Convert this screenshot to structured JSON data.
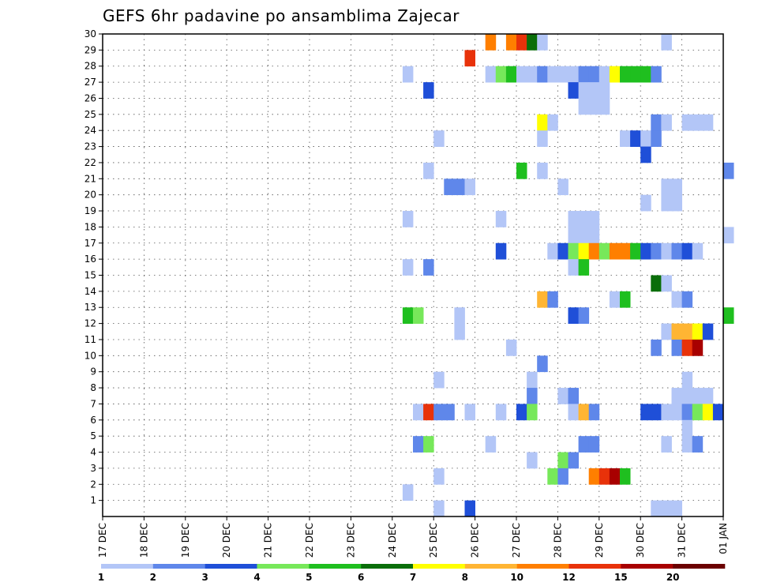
{
  "chart_data": {
    "type": "heatmap",
    "title": "GEFS 6hr padavine po ansamblima Zajecar",
    "xlabel": "",
    "ylabel": "",
    "x_ticks": [
      "17 DEC",
      "18 DEC",
      "19 DEC",
      "20 DEC",
      "21 DEC",
      "22 DEC",
      "23 DEC",
      "24 DEC",
      "25 DEC",
      "26 DEC",
      "27 DEC",
      "28 DEC",
      "29 DEC",
      "30 DEC",
      "31 DEC",
      "01 JAN"
    ],
    "x_unit": "6-hour step",
    "x_range": [
      "17 DEC 00Z",
      "01 JAN 00Z"
    ],
    "y_ticks": [
      1,
      2,
      3,
      4,
      5,
      6,
      7,
      8,
      9,
      10,
      11,
      12,
      13,
      14,
      15,
      16,
      17,
      18,
      19,
      20,
      21,
      22,
      23,
      24,
      25,
      26,
      27,
      28,
      29,
      30
    ],
    "y_range": [
      0,
      30
    ],
    "grid": true,
    "colorbar": {
      "placement": "bottom",
      "labels": [
        "1",
        "2",
        "3",
        "4",
        "5",
        "6",
        "7",
        "8",
        "10",
        "12",
        "15",
        "20"
      ],
      "colors": [
        "#b3c6f7",
        "#5f87ea",
        "#1f4fd8",
        "#77e85a",
        "#1fbf1f",
        "#0a6e0a",
        "#ffff00",
        "#ffb533",
        "#ff7f00",
        "#e8320a",
        "#a80000",
        "#6b0000"
      ]
    },
    "cells": [
      {
        "m": 30,
        "x": "26 DEC 06Z",
        "c": 8
      },
      {
        "m": 30,
        "x": "26 DEC 18Z",
        "c": 8
      },
      {
        "m": 30,
        "x": "27 DEC 00Z",
        "c": 9
      },
      {
        "m": 30,
        "x": "27 DEC 06Z",
        "c": 5
      },
      {
        "m": 30,
        "x": "27 DEC 12Z",
        "c": 0
      },
      {
        "m": 30,
        "x": "30 DEC 12Z",
        "c": 0
      },
      {
        "m": 29,
        "x": "25 DEC 18Z",
        "c": 9
      },
      {
        "m": 28,
        "x": "24 DEC 06Z",
        "c": 0
      },
      {
        "m": 28,
        "x": "26 DEC 06Z",
        "c": 0
      },
      {
        "m": 28,
        "x": "26 DEC 12Z",
        "c": 3
      },
      {
        "m": 28,
        "x": "26 DEC 18Z",
        "c": 4
      },
      {
        "m": 28,
        "x": "27 DEC 00Z",
        "c": 0
      },
      {
        "m": 28,
        "x": "27 DEC 06Z",
        "c": 0
      },
      {
        "m": 28,
        "x": "27 DEC 12Z",
        "c": 1
      },
      {
        "m": 28,
        "x": "27 DEC 18Z",
        "c": 0
      },
      {
        "m": 28,
        "x": "28 DEC 00Z",
        "c": 0
      },
      {
        "m": 28,
        "x": "28 DEC 06Z",
        "c": 0
      },
      {
        "m": 28,
        "x": "28 DEC 12Z",
        "c": 1
      },
      {
        "m": 28,
        "x": "28 DEC 18Z",
        "c": 1
      },
      {
        "m": 28,
        "x": "29 DEC 00Z",
        "c": 0
      },
      {
        "m": 28,
        "x": "29 DEC 06Z",
        "c": 6
      },
      {
        "m": 28,
        "x": "29 DEC 12Z",
        "c": 4
      },
      {
        "m": 28,
        "x": "29 DEC 18Z",
        "c": 4
      },
      {
        "m": 28,
        "x": "30 DEC 00Z",
        "c": 4
      },
      {
        "m": 28,
        "x": "30 DEC 06Z",
        "c": 1
      },
      {
        "m": 27,
        "x": "24 DEC 18Z",
        "c": 2
      },
      {
        "m": 27,
        "x": "28 DEC 06Z",
        "c": 2
      },
      {
        "m": 27,
        "x": "28 DEC 12Z",
        "c": 0
      },
      {
        "m": 27,
        "x": "28 DEC 18Z",
        "c": 0
      },
      {
        "m": 27,
        "x": "29 DEC 00Z",
        "c": 0
      },
      {
        "m": 26,
        "x": "28 DEC 12Z",
        "c": 0
      },
      {
        "m": 26,
        "x": "28 DEC 18Z",
        "c": 0
      },
      {
        "m": 26,
        "x": "29 DEC 00Z",
        "c": 0
      },
      {
        "m": 25,
        "x": "27 DEC 12Z",
        "c": 6
      },
      {
        "m": 25,
        "x": "27 DEC 18Z",
        "c": 0
      },
      {
        "m": 25,
        "x": "30 DEC 06Z",
        "c": 1
      },
      {
        "m": 25,
        "x": "30 DEC 12Z",
        "c": 0
      },
      {
        "m": 25,
        "x": "31 DEC 00Z",
        "c": 0
      },
      {
        "m": 25,
        "x": "31 DEC 06Z",
        "c": 0
      },
      {
        "m": 25,
        "x": "31 DEC 12Z",
        "c": 0
      },
      {
        "m": 24,
        "x": "25 DEC 00Z",
        "c": 0
      },
      {
        "m": 24,
        "x": "27 DEC 12Z",
        "c": 0
      },
      {
        "m": 24,
        "x": "29 DEC 12Z",
        "c": 0
      },
      {
        "m": 24,
        "x": "29 DEC 18Z",
        "c": 2
      },
      {
        "m": 24,
        "x": "30 DEC 00Z",
        "c": 0
      },
      {
        "m": 24,
        "x": "30 DEC 06Z",
        "c": 1
      },
      {
        "m": 23,
        "x": "30 DEC 00Z",
        "c": 2
      },
      {
        "m": 22,
        "x": "24 DEC 18Z",
        "c": 0
      },
      {
        "m": 22,
        "x": "27 DEC 00Z",
        "c": 4
      },
      {
        "m": 22,
        "x": "27 DEC 12Z",
        "c": 0
      },
      {
        "m": 22,
        "x": "01 JAN 00Z",
        "c": 1
      },
      {
        "m": 21,
        "x": "25 DEC 06Z",
        "c": 1
      },
      {
        "m": 21,
        "x": "25 DEC 12Z",
        "c": 1
      },
      {
        "m": 21,
        "x": "25 DEC 18Z",
        "c": 0
      },
      {
        "m": 21,
        "x": "28 DEC 00Z",
        "c": 0
      },
      {
        "m": 21,
        "x": "30 DEC 12Z",
        "c": 0
      },
      {
        "m": 21,
        "x": "30 DEC 18Z",
        "c": 0
      },
      {
        "m": 20,
        "x": "30 DEC 00Z",
        "c": 0
      },
      {
        "m": 20,
        "x": "30 DEC 12Z",
        "c": 0
      },
      {
        "m": 20,
        "x": "30 DEC 18Z",
        "c": 0
      },
      {
        "m": 19,
        "x": "24 DEC 06Z",
        "c": 0
      },
      {
        "m": 19,
        "x": "26 DEC 12Z",
        "c": 0
      },
      {
        "m": 19,
        "x": "28 DEC 06Z",
        "c": 0
      },
      {
        "m": 19,
        "x": "28 DEC 12Z",
        "c": 0
      },
      {
        "m": 19,
        "x": "28 DEC 18Z",
        "c": 0
      },
      {
        "m": 18,
        "x": "28 DEC 06Z",
        "c": 0
      },
      {
        "m": 18,
        "x": "28 DEC 12Z",
        "c": 0
      },
      {
        "m": 18,
        "x": "28 DEC 18Z",
        "c": 0
      },
      {
        "m": 18,
        "x": "01 JAN 00Z",
        "c": 0
      },
      {
        "m": 17,
        "x": "26 DEC 12Z",
        "c": 2
      },
      {
        "m": 17,
        "x": "27 DEC 18Z",
        "c": 0
      },
      {
        "m": 17,
        "x": "28 DEC 00Z",
        "c": 2
      },
      {
        "m": 17,
        "x": "28 DEC 06Z",
        "c": 3
      },
      {
        "m": 17,
        "x": "28 DEC 12Z",
        "c": 6
      },
      {
        "m": 17,
        "x": "28 DEC 18Z",
        "c": 8
      },
      {
        "m": 17,
        "x": "29 DEC 00Z",
        "c": 3
      },
      {
        "m": 17,
        "x": "29 DEC 06Z",
        "c": 8
      },
      {
        "m": 17,
        "x": "29 DEC 12Z",
        "c": 8
      },
      {
        "m": 17,
        "x": "29 DEC 18Z",
        "c": 4
      },
      {
        "m": 17,
        "x": "30 DEC 00Z",
        "c": 2
      },
      {
        "m": 17,
        "x": "30 DEC 06Z",
        "c": 1
      },
      {
        "m": 17,
        "x": "30 DEC 12Z",
        "c": 0
      },
      {
        "m": 17,
        "x": "30 DEC 18Z",
        "c": 1
      },
      {
        "m": 17,
        "x": "31 DEC 00Z",
        "c": 2
      },
      {
        "m": 17,
        "x": "31 DEC 06Z",
        "c": 0
      },
      {
        "m": 16,
        "x": "24 DEC 06Z",
        "c": 0
      },
      {
        "m": 16,
        "x": "24 DEC 18Z",
        "c": 1
      },
      {
        "m": 16,
        "x": "28 DEC 06Z",
        "c": 0
      },
      {
        "m": 16,
        "x": "28 DEC 12Z",
        "c": 4
      },
      {
        "m": 15,
        "x": "30 DEC 06Z",
        "c": 5
      },
      {
        "m": 15,
        "x": "30 DEC 12Z",
        "c": 0
      },
      {
        "m": 14,
        "x": "27 DEC 12Z",
        "c": 7
      },
      {
        "m": 14,
        "x": "27 DEC 18Z",
        "c": 1
      },
      {
        "m": 14,
        "x": "29 DEC 06Z",
        "c": 0
      },
      {
        "m": 14,
        "x": "29 DEC 12Z",
        "c": 4
      },
      {
        "m": 14,
        "x": "30 DEC 18Z",
        "c": 0
      },
      {
        "m": 14,
        "x": "31 DEC 00Z",
        "c": 1
      },
      {
        "m": 13,
        "x": "24 DEC 06Z",
        "c": 4
      },
      {
        "m": 13,
        "x": "24 DEC 12Z",
        "c": 3
      },
      {
        "m": 13,
        "x": "25 DEC 12Z",
        "c": 0
      },
      {
        "m": 13,
        "x": "28 DEC 06Z",
        "c": 2
      },
      {
        "m": 13,
        "x": "28 DEC 12Z",
        "c": 1
      },
      {
        "m": 13,
        "x": "01 JAN 00Z",
        "c": 4
      },
      {
        "m": 12,
        "x": "25 DEC 12Z",
        "c": 0
      },
      {
        "m": 12,
        "x": "30 DEC 12Z",
        "c": 0
      },
      {
        "m": 12,
        "x": "30 DEC 18Z",
        "c": 7
      },
      {
        "m": 12,
        "x": "31 DEC 00Z",
        "c": 7
      },
      {
        "m": 12,
        "x": "31 DEC 06Z",
        "c": 6
      },
      {
        "m": 12,
        "x": "31 DEC 12Z",
        "c": 2
      },
      {
        "m": 11,
        "x": "26 DEC 18Z",
        "c": 0
      },
      {
        "m": 11,
        "x": "30 DEC 06Z",
        "c": 1
      },
      {
        "m": 11,
        "x": "30 DEC 18Z",
        "c": 1
      },
      {
        "m": 11,
        "x": "31 DEC 00Z",
        "c": 9
      },
      {
        "m": 11,
        "x": "31 DEC 06Z",
        "c": 10
      },
      {
        "m": 10,
        "x": "27 DEC 12Z",
        "c": 1
      },
      {
        "m": 9,
        "x": "25 DEC 00Z",
        "c": 0
      },
      {
        "m": 9,
        "x": "27 DEC 06Z",
        "c": 0
      },
      {
        "m": 9,
        "x": "31 DEC 00Z",
        "c": 0
      },
      {
        "m": 8,
        "x": "27 DEC 06Z",
        "c": 1
      },
      {
        "m": 8,
        "x": "28 DEC 00Z",
        "c": 0
      },
      {
        "m": 8,
        "x": "28 DEC 06Z",
        "c": 1
      },
      {
        "m": 8,
        "x": "30 DEC 18Z",
        "c": 0
      },
      {
        "m": 8,
        "x": "31 DEC 00Z",
        "c": 0
      },
      {
        "m": 8,
        "x": "31 DEC 06Z",
        "c": 0
      },
      {
        "m": 8,
        "x": "31 DEC 12Z",
        "c": 0
      },
      {
        "m": 7,
        "x": "24 DEC 12Z",
        "c": 0
      },
      {
        "m": 7,
        "x": "24 DEC 18Z",
        "c": 9
      },
      {
        "m": 7,
        "x": "25 DEC 00Z",
        "c": 1
      },
      {
        "m": 7,
        "x": "25 DEC 06Z",
        "c": 1
      },
      {
        "m": 7,
        "x": "25 DEC 18Z",
        "c": 0
      },
      {
        "m": 7,
        "x": "26 DEC 12Z",
        "c": 0
      },
      {
        "m": 7,
        "x": "27 DEC 00Z",
        "c": 2
      },
      {
        "m": 7,
        "x": "27 DEC 06Z",
        "c": 3
      },
      {
        "m": 7,
        "x": "28 DEC 06Z",
        "c": 0
      },
      {
        "m": 7,
        "x": "28 DEC 12Z",
        "c": 7
      },
      {
        "m": 7,
        "x": "28 DEC 18Z",
        "c": 1
      },
      {
        "m": 7,
        "x": "30 DEC 00Z",
        "c": 2
      },
      {
        "m": 7,
        "x": "30 DEC 06Z",
        "c": 2
      },
      {
        "m": 7,
        "x": "30 DEC 12Z",
        "c": 0
      },
      {
        "m": 7,
        "x": "30 DEC 18Z",
        "c": 0
      },
      {
        "m": 7,
        "x": "31 DEC 00Z",
        "c": 1
      },
      {
        "m": 7,
        "x": "31 DEC 06Z",
        "c": 3
      },
      {
        "m": 7,
        "x": "31 DEC 12Z",
        "c": 6
      },
      {
        "m": 7,
        "x": "31 DEC 18Z",
        "c": 2
      },
      {
        "m": 6,
        "x": "31 DEC 00Z",
        "c": 0
      },
      {
        "m": 5,
        "x": "24 DEC 12Z",
        "c": 1
      },
      {
        "m": 5,
        "x": "24 DEC 18Z",
        "c": 3
      },
      {
        "m": 5,
        "x": "26 DEC 06Z",
        "c": 0
      },
      {
        "m": 5,
        "x": "28 DEC 12Z",
        "c": 1
      },
      {
        "m": 5,
        "x": "28 DEC 18Z",
        "c": 1
      },
      {
        "m": 5,
        "x": "30 DEC 12Z",
        "c": 0
      },
      {
        "m": 5,
        "x": "31 DEC 00Z",
        "c": 0
      },
      {
        "m": 5,
        "x": "31 DEC 06Z",
        "c": 1
      },
      {
        "m": 4,
        "x": "27 DEC 06Z",
        "c": 0
      },
      {
        "m": 4,
        "x": "28 DEC 00Z",
        "c": 3
      },
      {
        "m": 4,
        "x": "28 DEC 06Z",
        "c": 1
      },
      {
        "m": 3,
        "x": "25 DEC 00Z",
        "c": 0
      },
      {
        "m": 3,
        "x": "27 DEC 18Z",
        "c": 3
      },
      {
        "m": 3,
        "x": "28 DEC 00Z",
        "c": 1
      },
      {
        "m": 3,
        "x": "28 DEC 18Z",
        "c": 8
      },
      {
        "m": 3,
        "x": "29 DEC 00Z",
        "c": 9
      },
      {
        "m": 3,
        "x": "29 DEC 06Z",
        "c": 10
      },
      {
        "m": 3,
        "x": "29 DEC 12Z",
        "c": 4
      },
      {
        "m": 2,
        "x": "24 DEC 06Z",
        "c": 0
      },
      {
        "m": 1,
        "x": "25 DEC 00Z",
        "c": 0
      },
      {
        "m": 1,
        "x": "25 DEC 18Z",
        "c": 2
      },
      {
        "m": 1,
        "x": "30 DEC 06Z",
        "c": 0
      },
      {
        "m": 1,
        "x": "30 DEC 12Z",
        "c": 0
      },
      {
        "m": 1,
        "x": "30 DEC 18Z",
        "c": 0
      }
    ]
  }
}
